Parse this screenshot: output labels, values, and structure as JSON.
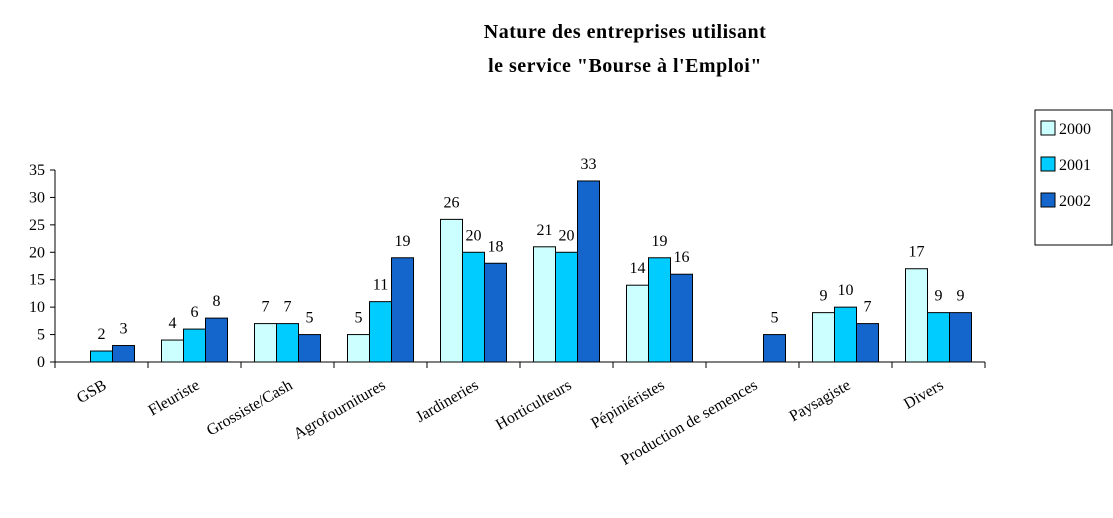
{
  "chart_data": {
    "type": "bar",
    "title": [
      "Nature des entreprises utilisant",
      "le service \"Bourse à l'Emploi\""
    ],
    "categories": [
      "GSB",
      "Fleuriste",
      "Grossiste/Cash",
      "Agrofournitures",
      "Jardineries",
      "Horticulteurs",
      "Pépiniéristes",
      "Production de semences",
      "Paysagiste",
      "Divers"
    ],
    "series": [
      {
        "name": "2000",
        "color": "#ccffff",
        "values": [
          null,
          4,
          7,
          5,
          26,
          21,
          14,
          null,
          9,
          17
        ]
      },
      {
        "name": "2001",
        "color": "#00ccff",
        "values": [
          2,
          6,
          7,
          11,
          20,
          20,
          19,
          null,
          10,
          9
        ]
      },
      {
        "name": "2002",
        "color": "#1466cc",
        "values": [
          3,
          8,
          5,
          19,
          18,
          33,
          16,
          5,
          7,
          9
        ]
      }
    ],
    "ylim": [
      0,
      35
    ],
    "yticks": [
      0,
      5,
      10,
      15,
      20,
      25,
      30,
      35
    ],
    "legend": "right"
  }
}
